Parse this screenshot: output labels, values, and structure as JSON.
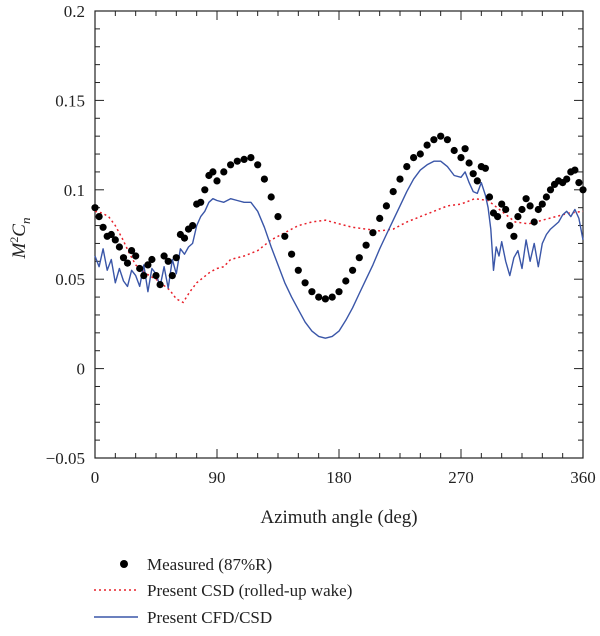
{
  "chart_data": {
    "type": "line",
    "xlabel": "Azimuth angle (deg)",
    "ylabel_main": "M",
    "ylabel_sup": "2",
    "ylabel_var": "C",
    "ylabel_sub": "n",
    "xlim": [
      0,
      360
    ],
    "ylim": [
      -0.05,
      0.2
    ],
    "x_ticks": [
      0,
      90,
      180,
      270,
      360
    ],
    "x_tick_labels": [
      "0",
      "90",
      "180",
      "270",
      "360"
    ],
    "y_ticks": [
      -0.05,
      0,
      0.05,
      0.1,
      0.15,
      0.2
    ],
    "y_tick_labels": [
      "−0.05",
      "0",
      "0.05",
      "0.1",
      "0.15",
      "0.2"
    ],
    "grid": false,
    "legend_position": "below",
    "colors": {
      "measured": "#000000",
      "csd": "#e8202a",
      "cfd": "#3a56a8"
    },
    "series": [
      {
        "name": "Measured (87%R)",
        "style": "markers",
        "x": [
          0,
          3,
          6,
          9,
          12,
          15,
          18,
          21,
          24,
          27,
          30,
          33,
          36,
          39,
          42,
          45,
          48,
          51,
          54,
          57,
          60,
          63,
          66,
          69,
          72,
          75,
          78,
          81,
          84,
          87,
          90,
          95,
          100,
          105,
          110,
          115,
          120,
          125,
          130,
          135,
          140,
          145,
          150,
          155,
          160,
          165,
          170,
          175,
          180,
          185,
          190,
          195,
          200,
          205,
          210,
          215,
          220,
          225,
          230,
          235,
          240,
          245,
          250,
          255,
          260,
          265,
          270,
          273,
          276,
          279,
          282,
          285,
          288,
          291,
          294,
          297,
          300,
          303,
          306,
          309,
          312,
          315,
          318,
          321,
          324,
          327,
          330,
          333,
          336,
          339,
          342,
          345,
          348,
          351,
          354,
          357,
          360
        ],
        "y": [
          0.09,
          0.085,
          0.079,
          0.074,
          0.075,
          0.072,
          0.068,
          0.062,
          0.059,
          0.066,
          0.063,
          0.056,
          0.052,
          0.058,
          0.061,
          0.052,
          0.047,
          0.063,
          0.06,
          0.052,
          0.062,
          0.075,
          0.073,
          0.078,
          0.08,
          0.092,
          0.093,
          0.1,
          0.108,
          0.11,
          0.105,
          0.11,
          0.114,
          0.116,
          0.117,
          0.118,
          0.114,
          0.106,
          0.096,
          0.085,
          0.074,
          0.064,
          0.055,
          0.048,
          0.043,
          0.04,
          0.039,
          0.04,
          0.043,
          0.049,
          0.055,
          0.062,
          0.069,
          0.076,
          0.084,
          0.091,
          0.099,
          0.106,
          0.113,
          0.118,
          0.12,
          0.125,
          0.128,
          0.13,
          0.128,
          0.122,
          0.118,
          0.123,
          0.115,
          0.109,
          0.105,
          0.113,
          0.112,
          0.096,
          0.087,
          0.085,
          0.092,
          0.089,
          0.08,
          0.074,
          0.085,
          0.089,
          0.095,
          0.091,
          0.082,
          0.089,
          0.092,
          0.096,
          0.1,
          0.103,
          0.105,
          0.104,
          0.106,
          0.11,
          0.111,
          0.104,
          0.1
        ]
      },
      {
        "name": "Present CSD (rolled-up wake)",
        "style": "dotted",
        "x": [
          0,
          5,
          10,
          15,
          20,
          25,
          30,
          35,
          40,
          45,
          50,
          55,
          60,
          65,
          70,
          75,
          80,
          85,
          90,
          95,
          100,
          110,
          120,
          130,
          140,
          150,
          160,
          170,
          180,
          190,
          200,
          210,
          220,
          230,
          240,
          250,
          260,
          270,
          280,
          290,
          300,
          310,
          320,
          330,
          340,
          350,
          360
        ],
        "y": [
          0.088,
          0.087,
          0.085,
          0.08,
          0.073,
          0.065,
          0.058,
          0.055,
          0.052,
          0.05,
          0.047,
          0.044,
          0.039,
          0.037,
          0.043,
          0.048,
          0.051,
          0.054,
          0.056,
          0.057,
          0.061,
          0.063,
          0.066,
          0.072,
          0.076,
          0.08,
          0.082,
          0.083,
          0.081,
          0.079,
          0.078,
          0.077,
          0.078,
          0.082,
          0.085,
          0.088,
          0.091,
          0.092,
          0.095,
          0.094,
          0.088,
          0.082,
          0.081,
          0.083,
          0.085,
          0.087,
          0.088
        ]
      },
      {
        "name": "Present CFD/CSD",
        "style": "solid",
        "x": [
          0,
          3,
          6,
          9,
          12,
          15,
          18,
          21,
          24,
          27,
          30,
          33,
          36,
          39,
          42,
          45,
          48,
          51,
          54,
          57,
          60,
          63,
          66,
          69,
          72,
          75,
          78,
          81,
          84,
          87,
          90,
          95,
          100,
          105,
          110,
          115,
          120,
          125,
          130,
          135,
          140,
          145,
          150,
          155,
          160,
          165,
          170,
          175,
          180,
          185,
          190,
          195,
          200,
          205,
          210,
          215,
          220,
          225,
          230,
          235,
          240,
          245,
          250,
          255,
          260,
          265,
          270,
          273,
          276,
          279,
          282,
          285,
          288,
          290,
          292,
          294,
          296,
          298,
          300,
          303,
          306,
          309,
          312,
          315,
          318,
          321,
          324,
          327,
          330,
          333,
          336,
          339,
          342,
          345,
          348,
          351,
          354,
          357,
          360
        ],
        "y": [
          0.063,
          0.057,
          0.067,
          0.055,
          0.061,
          0.048,
          0.056,
          0.049,
          0.046,
          0.055,
          0.052,
          0.046,
          0.058,
          0.043,
          0.056,
          0.053,
          0.046,
          0.057,
          0.045,
          0.061,
          0.053,
          0.067,
          0.064,
          0.068,
          0.07,
          0.08,
          0.085,
          0.088,
          0.093,
          0.095,
          0.094,
          0.093,
          0.095,
          0.094,
          0.093,
          0.093,
          0.088,
          0.079,
          0.068,
          0.058,
          0.048,
          0.04,
          0.033,
          0.026,
          0.021,
          0.018,
          0.017,
          0.018,
          0.021,
          0.027,
          0.034,
          0.042,
          0.05,
          0.058,
          0.067,
          0.075,
          0.083,
          0.091,
          0.099,
          0.106,
          0.111,
          0.114,
          0.116,
          0.116,
          0.113,
          0.108,
          0.107,
          0.11,
          0.104,
          0.099,
          0.098,
          0.104,
          0.097,
          0.09,
          0.078,
          0.055,
          0.068,
          0.063,
          0.071,
          0.06,
          0.052,
          0.062,
          0.066,
          0.056,
          0.072,
          0.06,
          0.07,
          0.057,
          0.07,
          0.075,
          0.078,
          0.08,
          0.082,
          0.086,
          0.088,
          0.085,
          0.089,
          0.084,
          0.072
        ]
      }
    ]
  }
}
